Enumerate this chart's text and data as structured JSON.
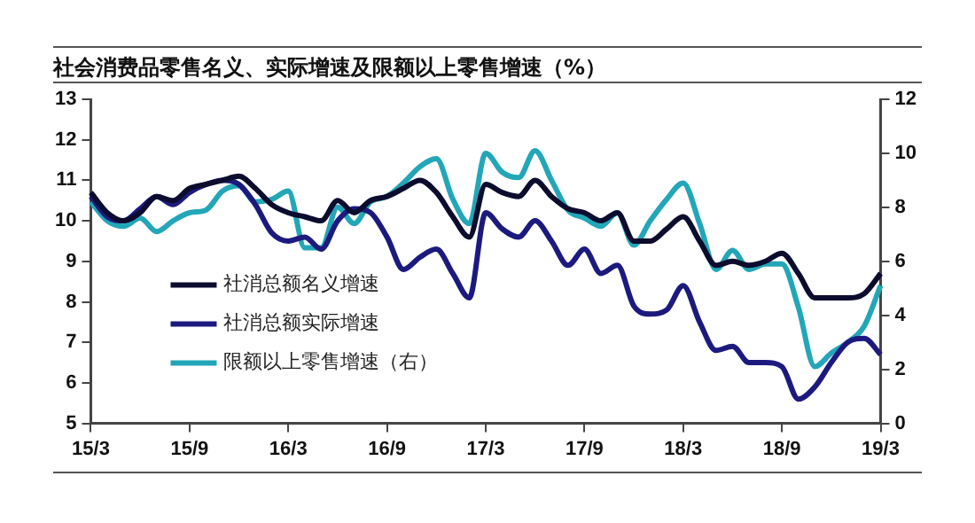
{
  "chart_data": {
    "type": "line",
    "title": "社会消费品零售名义、实际增速及限额以上零售增速（%）",
    "categories": [
      "15/3",
      null,
      null,
      null,
      null,
      null,
      "15/9",
      null,
      null,
      null,
      null,
      null,
      "16/3",
      null,
      null,
      null,
      null,
      null,
      "16/9",
      null,
      null,
      null,
      null,
      null,
      "17/3",
      null,
      null,
      null,
      null,
      null,
      "17/9",
      null,
      null,
      null,
      null,
      null,
      "18/3",
      null,
      null,
      null,
      null,
      null,
      "18/9",
      null,
      null,
      null,
      null,
      null,
      "19/3"
    ],
    "series": [
      {
        "name": "社消总额名义增速",
        "color": "#0c0c2e",
        "values": [
          10.7,
          10.2,
          10.0,
          10.2,
          10.6,
          10.5,
          10.8,
          10.9,
          11.0,
          11.1,
          10.8,
          10.4,
          10.2,
          10.1,
          10.0,
          10.5,
          10.2,
          10.5,
          10.6,
          10.8,
          11.0,
          10.7,
          10.1,
          9.6,
          10.9,
          10.7,
          10.6,
          11.0,
          10.6,
          10.3,
          10.2,
          10.0,
          10.2,
          9.5,
          9.5,
          9.8,
          10.1,
          9.5,
          8.9,
          9.0,
          8.9,
          9.0,
          9.2,
          8.7,
          8.1,
          8.1,
          8.1,
          8.2,
          8.7
        ]
      },
      {
        "name": "社消总额实际增速",
        "color": "#1c1a7e",
        "values": [
          10.6,
          10.1,
          10.0,
          10.3,
          10.6,
          10.4,
          10.7,
          10.9,
          11.0,
          10.9,
          10.4,
          9.7,
          9.5,
          9.6,
          9.3,
          10.0,
          10.3,
          10.2,
          9.6,
          8.8,
          9.1,
          9.3,
          8.7,
          8.1,
          10.2,
          9.8,
          9.6,
          10.0,
          9.5,
          8.9,
          9.3,
          8.7,
          8.9,
          7.9,
          7.7,
          7.8,
          8.4,
          7.5,
          6.8,
          6.9,
          6.5,
          6.5,
          6.4,
          5.6,
          5.9,
          6.5,
          7.0,
          7.1,
          6.7
        ]
      },
      {
        "name": "限额以上零售增速（右）",
        "color": "#22a6b8",
        "axis": "y2",
        "values": [
          8.2,
          7.5,
          7.3,
          7.6,
          7.1,
          7.5,
          7.8,
          7.9,
          8.6,
          8.8,
          8.2,
          8.3,
          8.6,
          6.5,
          6.5,
          8.0,
          7.4,
          8.2,
          8.4,
          8.9,
          9.5,
          9.8,
          8.3,
          7.4,
          10.0,
          9.3,
          9.1,
          10.1,
          9.0,
          7.9,
          7.6,
          7.3,
          7.8,
          6.6,
          7.5,
          8.3,
          8.9,
          7.4,
          5.7,
          6.4,
          5.7,
          5.9,
          5.9,
          4.3,
          2.1,
          2.6,
          3.0,
          3.6,
          5.1
        ]
      }
    ],
    "ylim": [
      5,
      13
    ],
    "yticks": [
      5,
      6,
      7,
      8,
      9,
      10,
      11,
      12,
      13
    ],
    "y2lim": [
      0,
      12
    ],
    "y2ticks": [
      0,
      2,
      4,
      6,
      8,
      10,
      12
    ],
    "grid": false,
    "legend": "bottom left"
  }
}
